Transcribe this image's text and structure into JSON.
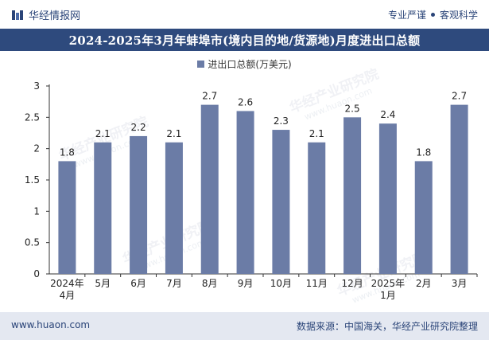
{
  "header": {
    "brand": "华经情报网",
    "tagline_left": "专业严谨",
    "tagline_right": "客观科学"
  },
  "watermark": {
    "text": "华经产业研究院",
    "url": "www.huaon.com"
  },
  "footer": {
    "url": "www.huaon.com",
    "source": "数据来源：中国海关，华经产业研究院整理"
  },
  "colors": {
    "bar": "#6b7ca6",
    "title_bg": "#2e4a7d",
    "footer_bg": "#e4e8f1"
  },
  "chart_data": {
    "type": "bar",
    "title": "2024-2025年3月年蚌埠市(境内目的地/货源地)月度进出口总额",
    "legend": "进出口总额(万美元)",
    "categories": [
      [
        "2024年",
        "4月"
      ],
      [
        "5月"
      ],
      [
        "6月"
      ],
      [
        "7月"
      ],
      [
        "8月"
      ],
      [
        "9月"
      ],
      [
        "10月"
      ],
      [
        "11月"
      ],
      [
        "12月"
      ],
      [
        "2025年",
        "1月"
      ],
      [
        "2月"
      ],
      [
        "3月"
      ]
    ],
    "values": [
      1.8,
      2.1,
      2.2,
      2.1,
      2.7,
      2.6,
      2.3,
      2.1,
      2.5,
      2.4,
      1.8,
      2.7
    ],
    "value_labels": [
      "1.8",
      "2.1",
      "2.2",
      "2.1",
      "2.7",
      "2.6",
      "2.3",
      "2.1",
      "2.5",
      "2.4",
      "1.8",
      "2.7"
    ],
    "ylim": [
      0,
      3
    ],
    "yticks": [
      "0",
      "0.5",
      "1",
      "1.5",
      "2",
      "2.5",
      "3"
    ],
    "ytick_values": [
      0,
      0.5,
      1,
      1.5,
      2,
      2.5,
      3
    ],
    "grid": false
  }
}
